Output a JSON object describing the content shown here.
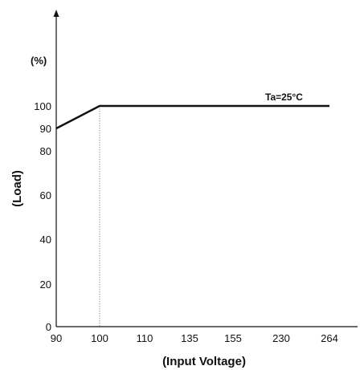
{
  "chart_data": {
    "type": "line",
    "title": "",
    "xlabel": "(Input Voltage)",
    "ylabel": "(Load)",
    "y_unit": "(%)",
    "x_ticks": [
      "90",
      "100",
      "110",
      "135",
      "155",
      "230",
      "264"
    ],
    "y_ticks": [
      0,
      20,
      40,
      60,
      80,
      90,
      100
    ],
    "ylim": [
      0,
      100
    ],
    "grid": false,
    "series": [
      {
        "name": "Ta=25°C",
        "points": [
          {
            "x": "90",
            "y": 90
          },
          {
            "x": "100",
            "y": 100
          },
          {
            "x": "264",
            "y": 100
          }
        ]
      }
    ],
    "reference_lines": [
      {
        "x": "100",
        "style": "dotted"
      }
    ],
    "annotations": [
      {
        "text": "Ta=25°C"
      }
    ]
  }
}
